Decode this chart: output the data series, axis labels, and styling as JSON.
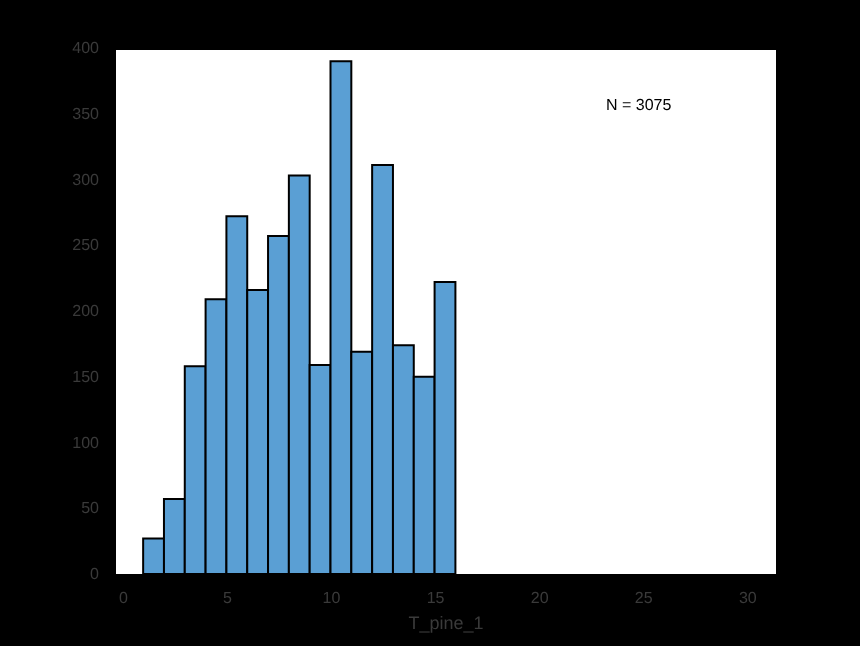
{
  "chart_data": {
    "type": "histogram",
    "xlabel": "T_pine_1",
    "bins": [
      1,
      2,
      3,
      4,
      5,
      6,
      7,
      8,
      9,
      10,
      11,
      12,
      13,
      14,
      15,
      16
    ],
    "values": [
      27,
      57,
      158,
      209,
      272,
      216,
      257,
      303,
      159,
      390,
      169,
      311,
      174,
      150,
      222
    ],
    "color": "#5a9fd4",
    "xlim": [
      -0.4,
      31.4
    ],
    "xticks": [
      0,
      5,
      10,
      15,
      20,
      25,
      30
    ],
    "ylim": [
      0,
      400
    ],
    "yticks": [
      0,
      50,
      100,
      150,
      200,
      250,
      300,
      350,
      400
    ],
    "annotations": [
      "N = 3075"
    ]
  }
}
